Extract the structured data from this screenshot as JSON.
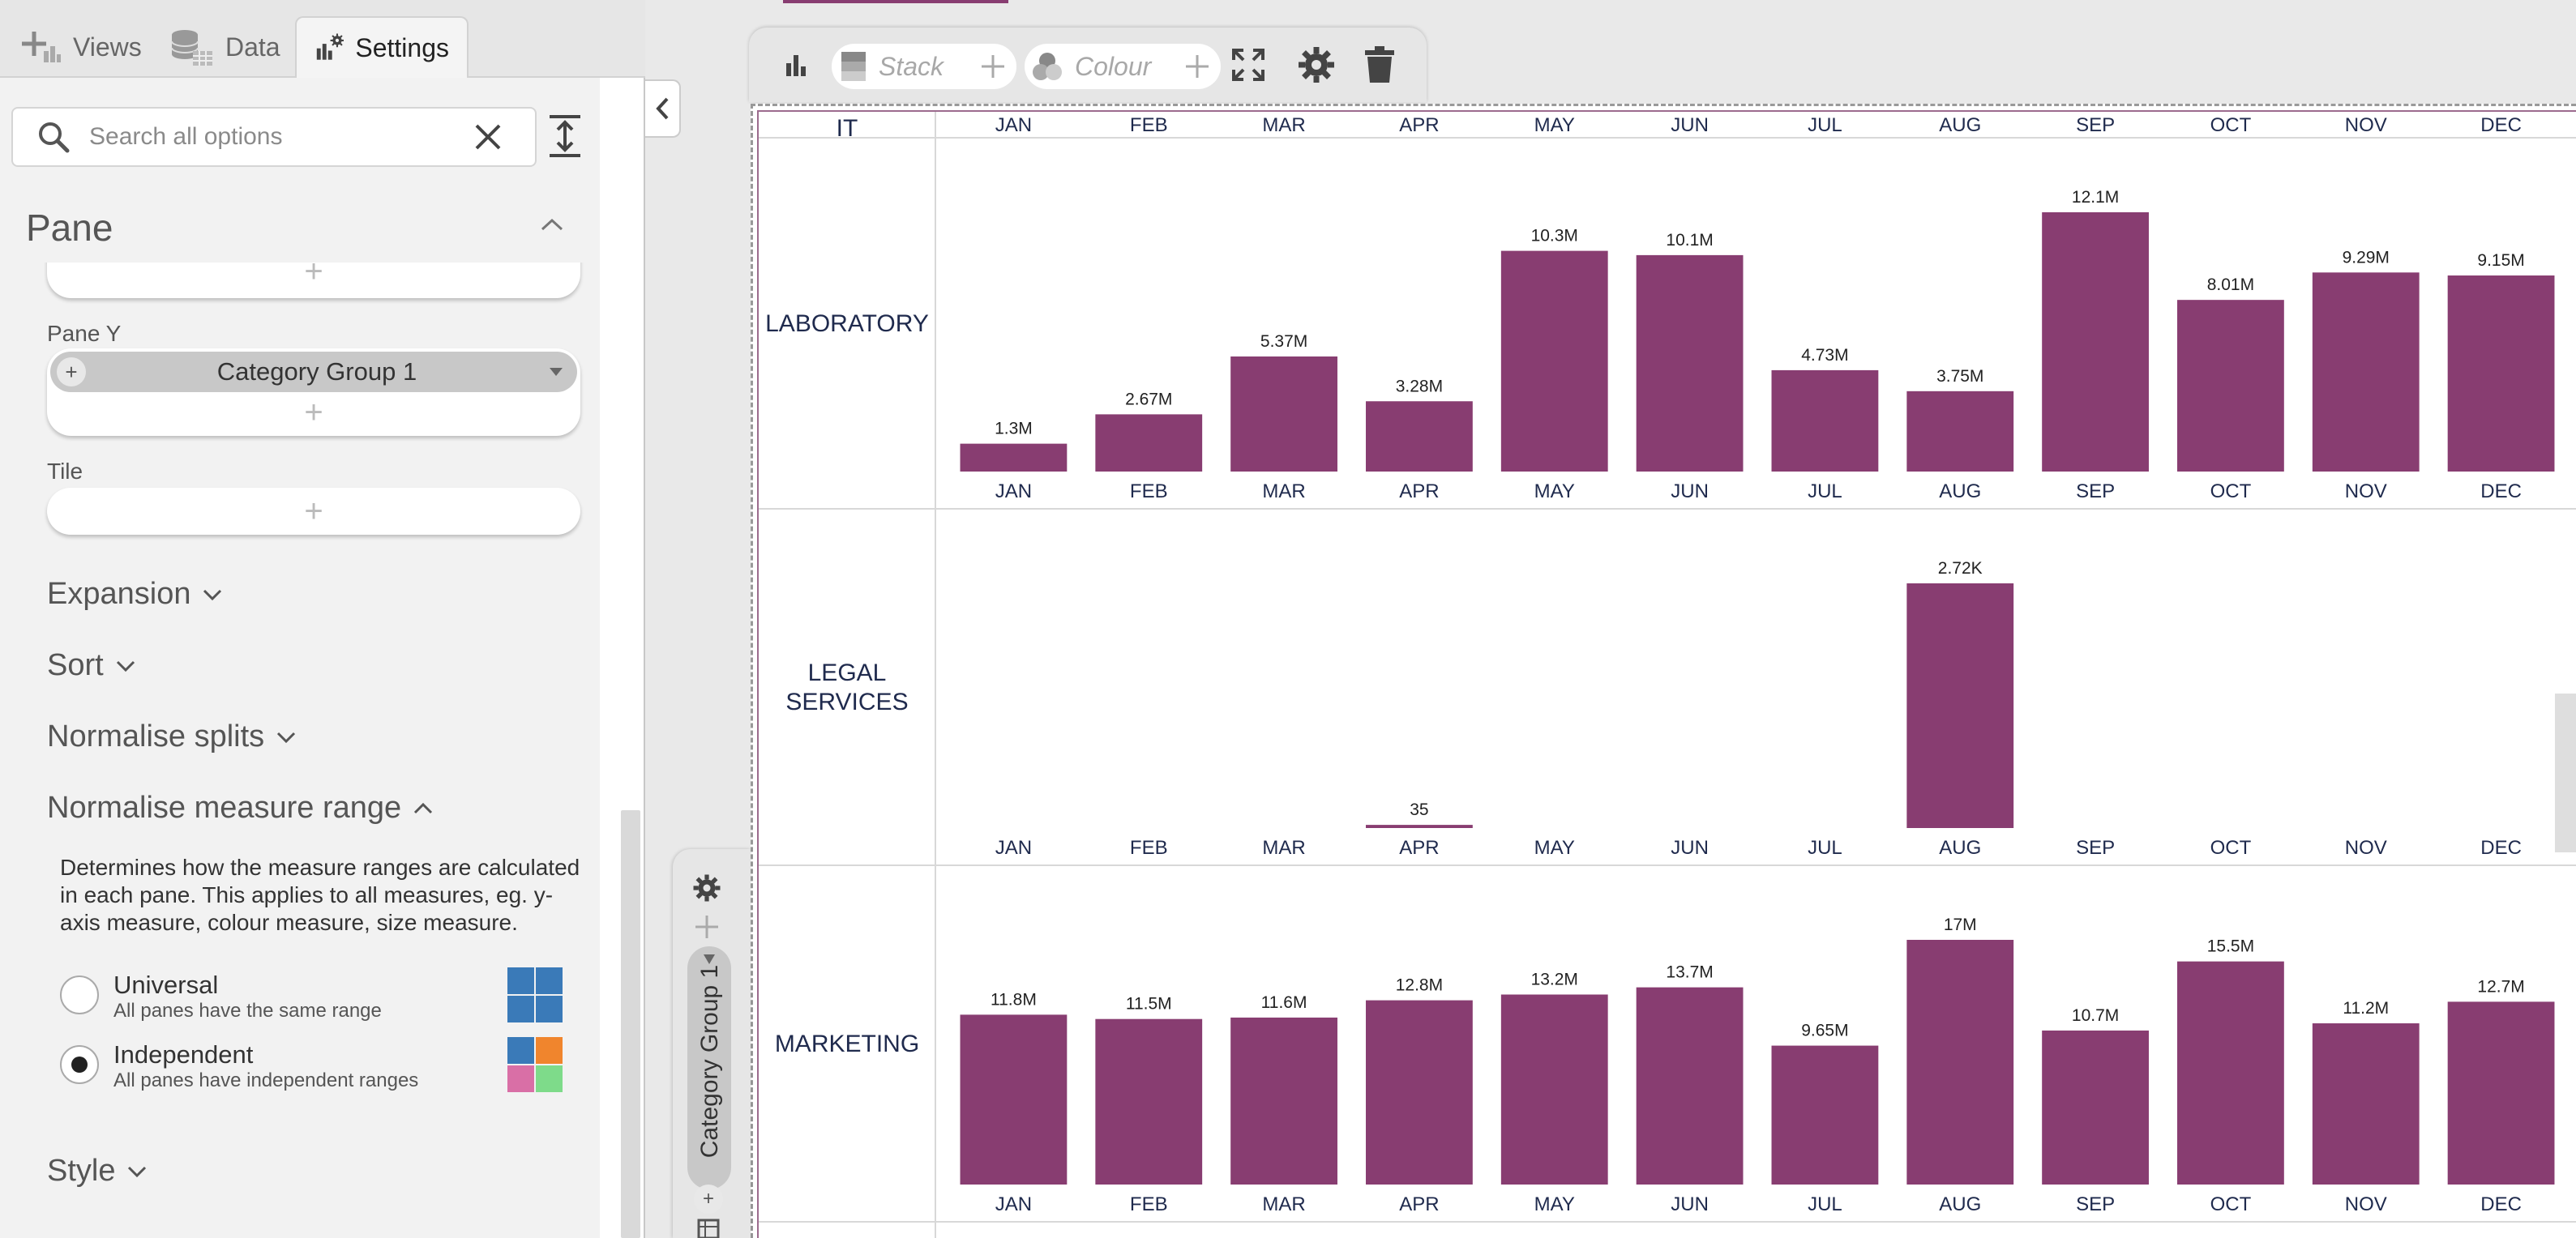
{
  "tabs": [
    {
      "label": "Views",
      "icon": "plus-icon"
    },
    {
      "label": "Data",
      "icon": "database-icon"
    },
    {
      "label": "Settings",
      "icon": "chart-settings-icon",
      "active": true
    }
  ],
  "search": {
    "placeholder": "Search all options",
    "value": ""
  },
  "pane": {
    "header": "Pane",
    "pane_y_label": "Pane Y",
    "pane_y_field": "Category Group 1",
    "tile_label": "Tile"
  },
  "sections": {
    "expansion": "Expansion",
    "sort": "Sort",
    "normalise_splits": "Normalise splits",
    "normalise_measure_range": "Normalise measure range",
    "style": "Style"
  },
  "normalise_measure_range": {
    "description": "Determines how the measure ranges are calculated in each pane. This applies to all measures, eg. y-axis measure, colour measure, size measure.",
    "options": [
      {
        "title": "Universal",
        "subtitle": "All panes have the same range",
        "checked": false
      },
      {
        "title": "Independent",
        "subtitle": "All panes have independent ranges",
        "checked": true
      }
    ]
  },
  "toolbar": {
    "stack_label": "Stack",
    "colour_label": "Colour"
  },
  "y_axis_field": "Category Group 1",
  "colors": {
    "bar": "#883d71",
    "accent": "#883d71",
    "label_text": "#1f2a4d",
    "swatch_blue": "#3a7ab8",
    "swatch_orange": "#f0852d",
    "swatch_pink": "#d96fa6",
    "swatch_green": "#7edb8a"
  },
  "chart_data": {
    "type": "bar",
    "categories": [
      "JAN",
      "FEB",
      "MAR",
      "APR",
      "MAY",
      "JUN",
      "JUL",
      "AUG",
      "SEP",
      "OCT",
      "NOV",
      "DEC"
    ],
    "panes": [
      {
        "name": "IT",
        "values": [],
        "labels": []
      },
      {
        "name": "LABORATORY",
        "values": [
          1300000,
          2670000,
          5370000,
          3280000,
          10300000,
          10100000,
          4730000,
          3750000,
          12100000,
          8010000,
          9290000,
          9150000
        ],
        "labels": [
          "1.3M",
          "2.67M",
          "5.37M",
          "3.28M",
          "10.3M",
          "10.1M",
          "4.73M",
          "3.75M",
          "12.1M",
          "8.01M",
          "9.29M",
          "9.15M"
        ]
      },
      {
        "name": "LEGAL SERVICES",
        "values": [
          null,
          null,
          null,
          35,
          null,
          null,
          null,
          2720,
          null,
          null,
          null,
          null
        ],
        "labels": [
          null,
          null,
          null,
          "35",
          null,
          null,
          null,
          "2.72K",
          null,
          null,
          null,
          null
        ]
      },
      {
        "name": "MARKETING",
        "values": [
          11800000,
          11500000,
          11600000,
          12800000,
          13200000,
          13700000,
          9650000,
          17000000,
          10700000,
          15500000,
          11200000,
          12700000
        ],
        "labels": [
          "11.8M",
          "11.5M",
          "11.6M",
          "12.8M",
          "13.2M",
          "13.7M",
          "9.65M",
          "17M",
          "10.7M",
          "15.5M",
          "11.2M",
          "12.7M"
        ]
      }
    ],
    "normalise": "independent"
  }
}
